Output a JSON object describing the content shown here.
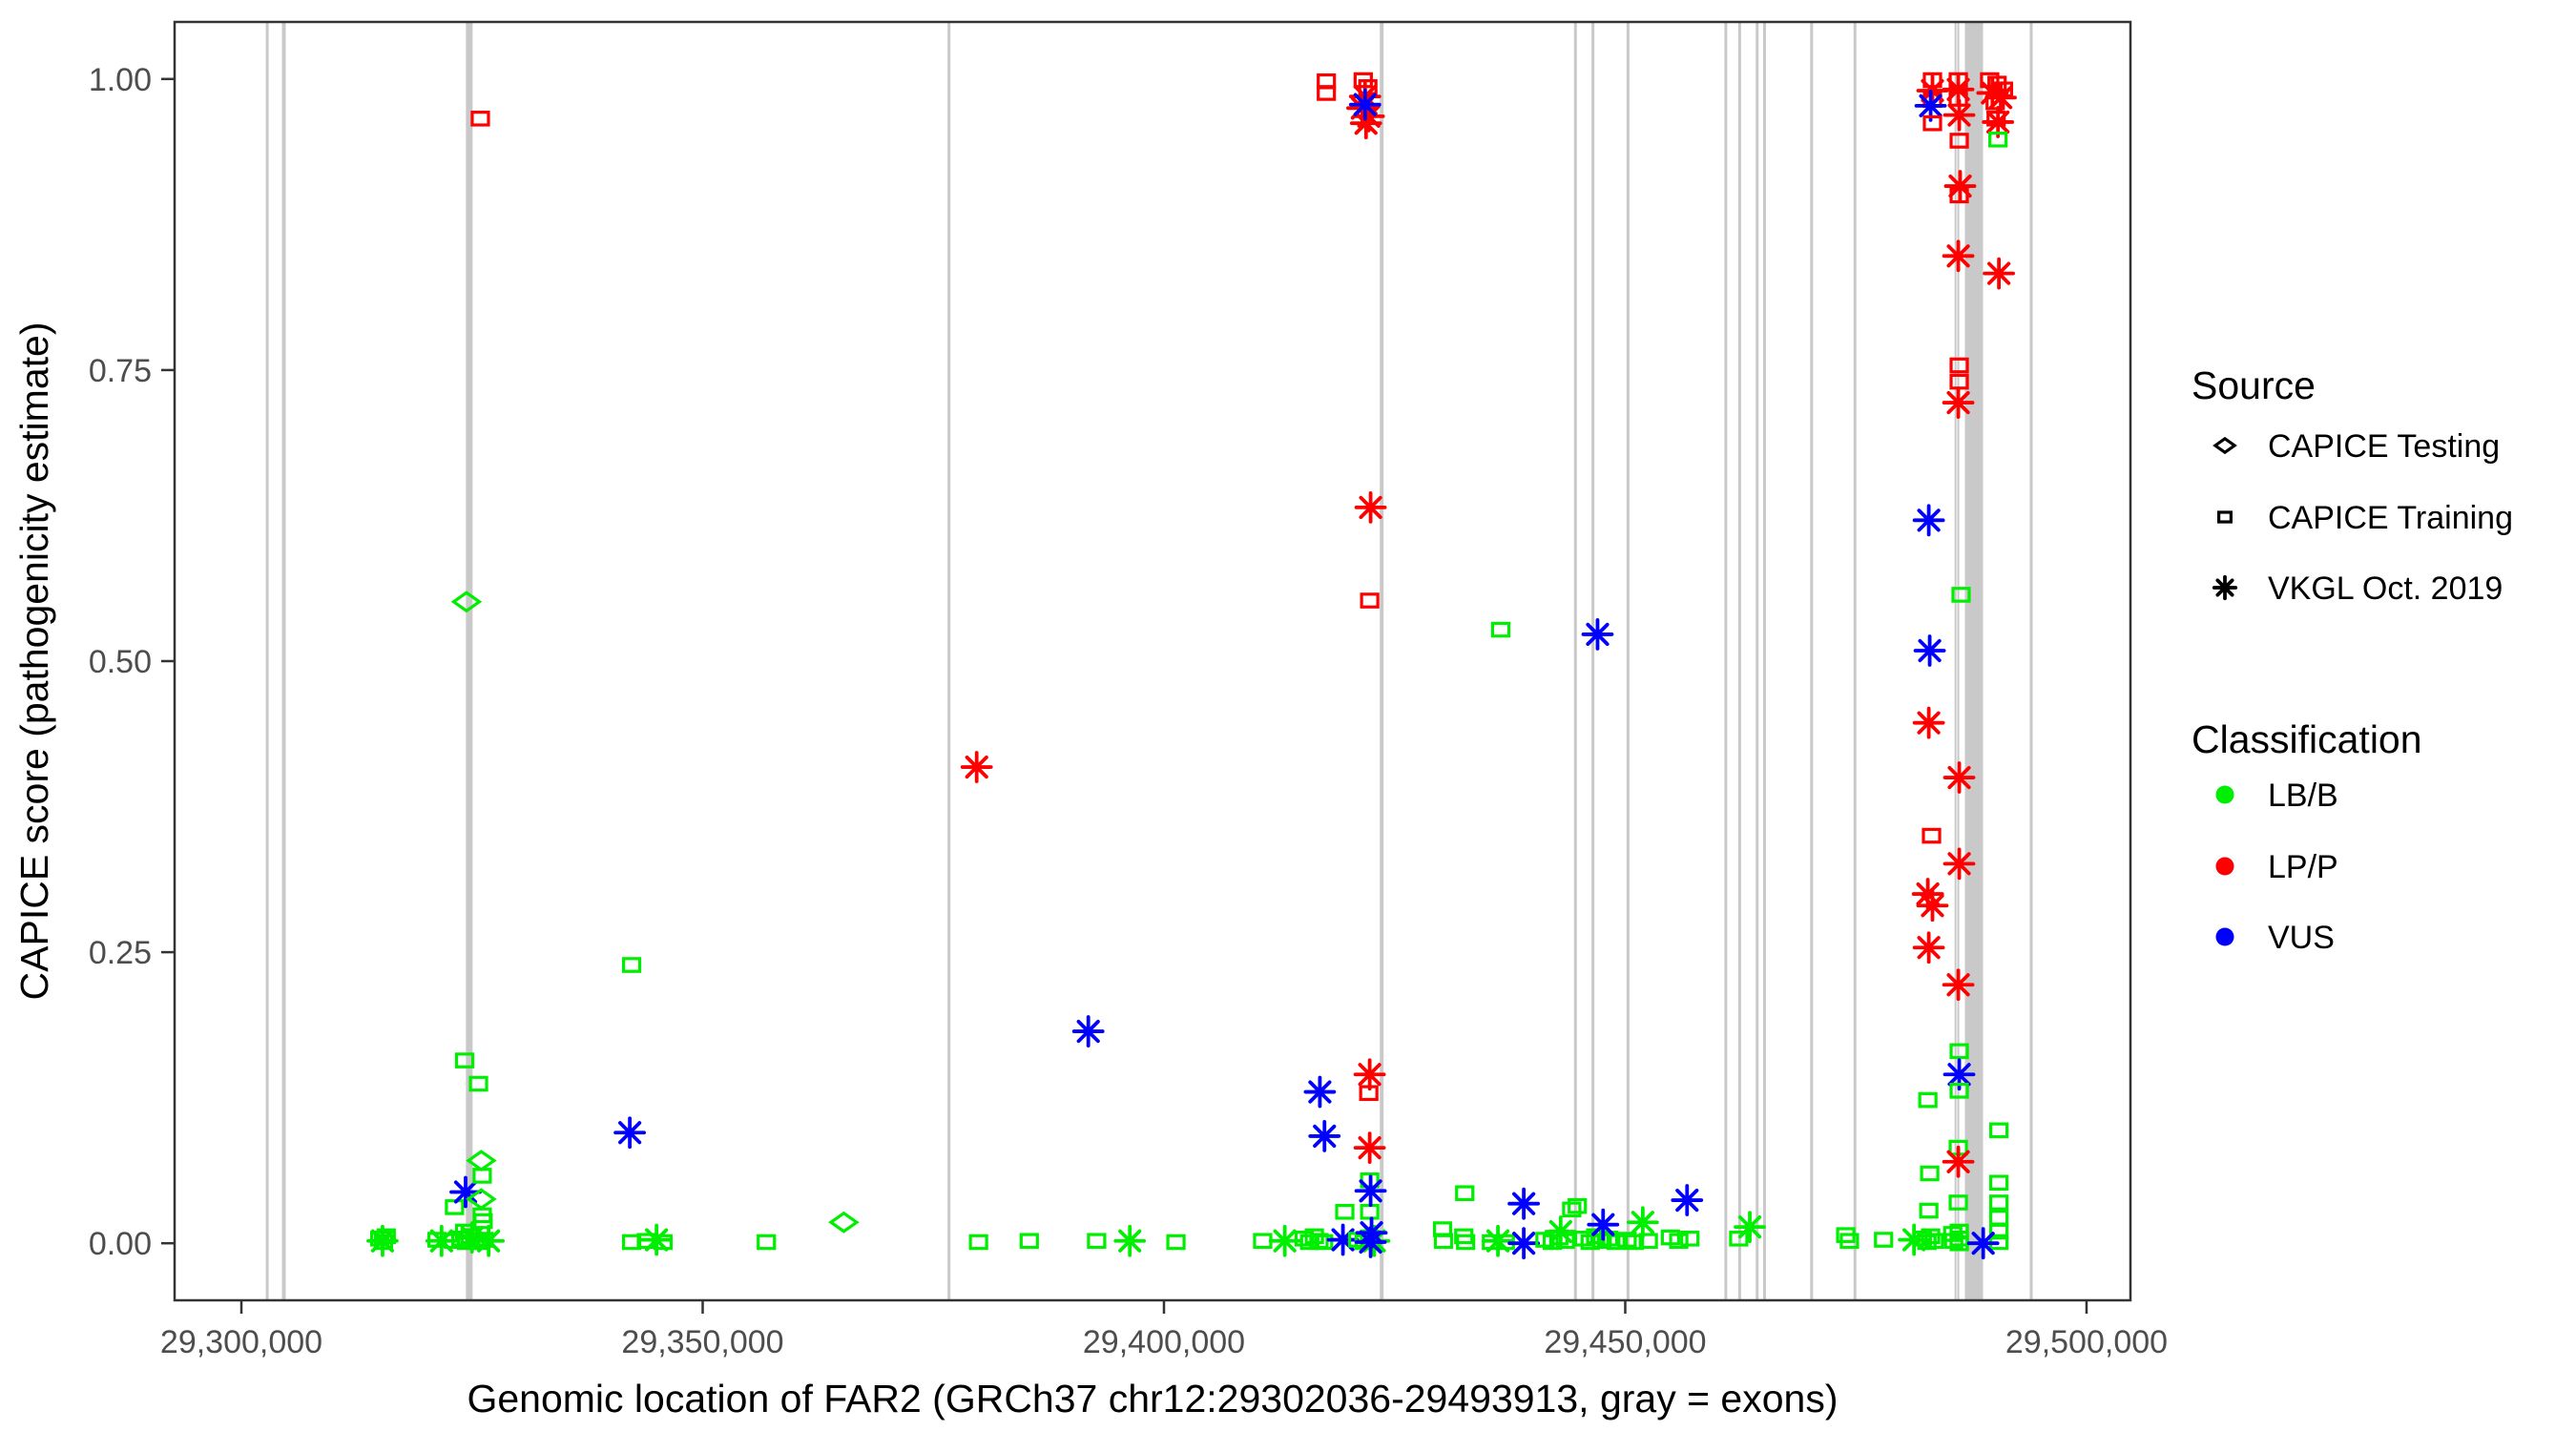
{
  "chart_data": {
    "type": "scatter",
    "title": "",
    "xlabel": "Genomic location of FAR2 (GRCh37 chr12:29302036-29493913, gray = exons)",
    "ylabel": "CAPICE score (pathogenicity estimate)",
    "x_domain": [
      29292760,
      29504760
    ],
    "y_domain": [
      -0.049,
      1.049
    ],
    "grid": "off",
    "x_ticks": [
      {
        "value": 29300000,
        "label": "29,300,000"
      },
      {
        "value": 29350000,
        "label": "29,350,000"
      },
      {
        "value": 29400000,
        "label": "29,400,000"
      },
      {
        "value": 29450000,
        "label": "29,450,000"
      },
      {
        "value": 29500000,
        "label": "29,500,000"
      }
    ],
    "y_ticks": [
      {
        "value": 0.0,
        "label": "0.00"
      },
      {
        "value": 0.25,
        "label": "0.25"
      },
      {
        "value": 0.5,
        "label": "0.50"
      },
      {
        "value": 0.75,
        "label": "0.75"
      },
      {
        "value": 1.0,
        "label": "1.00"
      }
    ],
    "shape_codes": {
      "d": "CAPICE Testing (open diamond)",
      "q": "CAPICE Training (open square)",
      "a": "VKGL Oct. 2019 (asterisk)"
    },
    "color_codes": {
      "G": "LB/B",
      "R": "LP/P",
      "B": "VUS"
    },
    "colors": {
      "G": "#00ee00",
      "R": "#ff0000",
      "B": "#0000ff",
      "exon": "#c9c9c9"
    },
    "exons": [
      {
        "g": 29302800,
        "w": 3
      },
      {
        "g": 29304600,
        "w": 4
      },
      {
        "g": 29324700,
        "w": 7
      },
      {
        "g": 29376700,
        "w": 3
      },
      {
        "g": 29423600,
        "w": 4
      },
      {
        "g": 29444600,
        "w": 3
      },
      {
        "g": 29446500,
        "w": 3
      },
      {
        "g": 29450300,
        "w": 3
      },
      {
        "g": 29460900,
        "w": 3
      },
      {
        "g": 29462400,
        "w": 3
      },
      {
        "g": 29464300,
        "w": 3
      },
      {
        "g": 29465100,
        "w": 3
      },
      {
        "g": 29470200,
        "w": 3
      },
      {
        "g": 29474900,
        "w": 3
      },
      {
        "g": 29485800,
        "w": 2
      },
      {
        "g": 29486100,
        "w": 2
      },
      {
        "g": 29487800,
        "w": 19
      },
      {
        "g": 29494000,
        "w": 3
      }
    ],
    "points": [
      [
        29315000,
        0.004,
        "q",
        "G"
      ],
      [
        29315400,
        0.001,
        "q",
        "G"
      ],
      [
        29315700,
        0.006,
        "q",
        "G"
      ],
      [
        29315300,
        0.002,
        "a",
        "G"
      ],
      [
        29321200,
        0.003,
        "q",
        "G"
      ],
      [
        29321700,
        0.002,
        "a",
        "G"
      ],
      [
        29323000,
        0.002,
        "q",
        "G"
      ],
      [
        29323800,
        0.004,
        "q",
        "G"
      ],
      [
        29324400,
        0.001,
        "q",
        "G"
      ],
      [
        29324800,
        0.006,
        "q",
        "G"
      ],
      [
        29325300,
        0.002,
        "q",
        "G"
      ],
      [
        29325800,
        0.001,
        "q",
        "G"
      ],
      [
        29326300,
        0.003,
        "q",
        "G"
      ],
      [
        29325000,
        0.005,
        "a",
        "G"
      ],
      [
        29326800,
        0.002,
        "a",
        "G"
      ],
      [
        29324200,
        0.01,
        "q",
        "G"
      ],
      [
        29323100,
        0.031,
        "q",
        "G"
      ],
      [
        29326100,
        0.024,
        "q",
        "G"
      ],
      [
        29326200,
        0.019,
        "q",
        "G"
      ],
      [
        29324300,
        0.044,
        "a",
        "B"
      ],
      [
        29326000,
        0.071,
        "d",
        "G"
      ],
      [
        29326100,
        0.058,
        "q",
        "G"
      ],
      [
        29326000,
        0.038,
        "d",
        "G"
      ],
      [
        29324200,
        0.157,
        "q",
        "G"
      ],
      [
        29325700,
        0.137,
        "q",
        "G"
      ],
      [
        29324400,
        0.551,
        "d",
        "G"
      ],
      [
        29325900,
        0.966,
        "q",
        "R"
      ],
      [
        29342300,
        0.001,
        "q",
        "G"
      ],
      [
        29343900,
        0.002,
        "q",
        "G"
      ],
      [
        29345700,
        0.001,
        "q",
        "G"
      ],
      [
        29345000,
        0.003,
        "a",
        "G"
      ],
      [
        29342100,
        0.095,
        "a",
        "B"
      ],
      [
        29342300,
        0.239,
        "q",
        "G"
      ],
      [
        29356900,
        0.001,
        "q",
        "G"
      ],
      [
        29365300,
        0.018,
        "d",
        "G"
      ],
      [
        29379700,
        0.409,
        "a",
        "R"
      ],
      [
        29379900,
        0.001,
        "q",
        "G"
      ],
      [
        29385400,
        0.002,
        "q",
        "G"
      ],
      [
        29391800,
        0.182,
        "a",
        "B"
      ],
      [
        29392700,
        0.002,
        "q",
        "G"
      ],
      [
        29396300,
        0.002,
        "a",
        "G"
      ],
      [
        29401300,
        0.001,
        "q",
        "G"
      ],
      [
        29410700,
        0.002,
        "q",
        "G"
      ],
      [
        29413100,
        0.002,
        "a",
        "G"
      ],
      [
        29415200,
        0.004,
        "q",
        "G"
      ],
      [
        29415800,
        0.001,
        "q",
        "G"
      ],
      [
        29416300,
        0.006,
        "q",
        "G"
      ],
      [
        29416800,
        0.002,
        "q",
        "G"
      ],
      [
        29417300,
        0.001,
        "q",
        "G"
      ],
      [
        29416900,
        0.13,
        "a",
        "B"
      ],
      [
        29417400,
        0.092,
        "a",
        "B"
      ],
      [
        29417600,
        0.998,
        "q",
        "R"
      ],
      [
        29417600,
        0.988,
        "q",
        "R"
      ],
      [
        29419400,
        0.003,
        "a",
        "B"
      ],
      [
        29419600,
        0.027,
        "q",
        "G"
      ],
      [
        29421000,
        0.003,
        "q",
        "G"
      ],
      [
        29421700,
        0.001,
        "q",
        "G"
      ],
      [
        29422300,
        0.005,
        "q",
        "G"
      ],
      [
        29422800,
        0.002,
        "a",
        "G"
      ],
      [
        29422400,
        0.001,
        "a",
        "B"
      ],
      [
        29422300,
        0.027,
        "q",
        "G"
      ],
      [
        29422300,
        0.054,
        "q",
        "G"
      ],
      [
        29422400,
        0.045,
        "a",
        "B"
      ],
      [
        29422500,
        0.009,
        "a",
        "B"
      ],
      [
        29422300,
        0.145,
        "a",
        "R"
      ],
      [
        29422200,
        0.129,
        "q",
        "R"
      ],
      [
        29422300,
        0.082,
        "a",
        "R"
      ],
      [
        29422300,
        0.552,
        "q",
        "R"
      ],
      [
        29422400,
        0.632,
        "a",
        "R"
      ],
      [
        29421600,
        0.999,
        "q",
        "R"
      ],
      [
        29422100,
        0.993,
        "q",
        "R"
      ],
      [
        29421800,
        0.985,
        "a",
        "R"
      ],
      [
        29421500,
        0.975,
        "a",
        "R"
      ],
      [
        29422200,
        0.968,
        "a",
        "R"
      ],
      [
        29421900,
        0.962,
        "a",
        "R"
      ],
      [
        29421800,
        0.978,
        "a",
        "B"
      ],
      [
        29430200,
        0.012,
        "q",
        "G"
      ],
      [
        29430300,
        0.002,
        "q",
        "G"
      ],
      [
        29432600,
        0.043,
        "q",
        "G"
      ],
      [
        29432500,
        0.006,
        "q",
        "G"
      ],
      [
        29432700,
        0.001,
        "q",
        "G"
      ],
      [
        29435500,
        0.001,
        "q",
        "G"
      ],
      [
        29436200,
        0.002,
        "a",
        "G"
      ],
      [
        29437000,
        0.001,
        "q",
        "G"
      ],
      [
        29436500,
        0.527,
        "q",
        "G"
      ],
      [
        29439000,
        0.034,
        "a",
        "B"
      ],
      [
        29439000,
        0.0,
        "a",
        "B"
      ],
      [
        29441300,
        0.003,
        "q",
        "G"
      ],
      [
        29442100,
        0.001,
        "q",
        "G"
      ],
      [
        29442800,
        0.005,
        "q",
        "G"
      ],
      [
        29443500,
        0.002,
        "q",
        "G"
      ],
      [
        29443000,
        0.01,
        "a",
        "G"
      ],
      [
        29444200,
        0.029,
        "q",
        "G"
      ],
      [
        29444800,
        0.032,
        "q",
        "G"
      ],
      [
        29445500,
        0.004,
        "q",
        "G"
      ],
      [
        29446200,
        0.001,
        "q",
        "G"
      ],
      [
        29446800,
        0.006,
        "q",
        "G"
      ],
      [
        29447500,
        0.002,
        "q",
        "G"
      ],
      [
        29448200,
        0.004,
        "q",
        "G"
      ],
      [
        29449000,
        0.001,
        "q",
        "G"
      ],
      [
        29447000,
        0.523,
        "a",
        "B"
      ],
      [
        29447600,
        0.016,
        "a",
        "B"
      ],
      [
        29450200,
        0.003,
        "q",
        "G"
      ],
      [
        29451000,
        0.001,
        "q",
        "G"
      ],
      [
        29451900,
        0.018,
        "a",
        "G"
      ],
      [
        29452500,
        0.002,
        "q",
        "G"
      ],
      [
        29454900,
        0.005,
        "q",
        "G"
      ],
      [
        29455800,
        0.002,
        "q",
        "G"
      ],
      [
        29457000,
        0.004,
        "q",
        "G"
      ],
      [
        29456700,
        0.037,
        "a",
        "B"
      ],
      [
        29462300,
        0.004,
        "q",
        "G"
      ],
      [
        29463500,
        0.014,
        "a",
        "G"
      ],
      [
        29473900,
        0.007,
        "q",
        "G"
      ],
      [
        29474300,
        0.002,
        "q",
        "G"
      ],
      [
        29478000,
        0.003,
        "q",
        "G"
      ],
      [
        29481300,
        0.003,
        "a",
        "G"
      ],
      [
        29482200,
        0.004,
        "q",
        "G"
      ],
      [
        29482700,
        0.001,
        "q",
        "G"
      ],
      [
        29483100,
        0.006,
        "q",
        "G"
      ],
      [
        29483500,
        0.002,
        "q",
        "G"
      ],
      [
        29485500,
        0.008,
        "q",
        "G"
      ],
      [
        29485600,
        0.002,
        "q",
        "G"
      ],
      [
        29483300,
        0.999,
        "q",
        "R"
      ],
      [
        29483300,
        0.99,
        "a",
        "R"
      ],
      [
        29483300,
        0.982,
        "q",
        "R"
      ],
      [
        29483100,
        0.977,
        "a",
        "B"
      ],
      [
        29483300,
        0.962,
        "q",
        "R"
      ],
      [
        29482900,
        0.621,
        "a",
        "B"
      ],
      [
        29483000,
        0.509,
        "a",
        "B"
      ],
      [
        29482900,
        0.447,
        "a",
        "R"
      ],
      [
        29483200,
        0.35,
        "q",
        "R"
      ],
      [
        29482800,
        0.3,
        "a",
        "R"
      ],
      [
        29483300,
        0.29,
        "a",
        "R"
      ],
      [
        29482900,
        0.254,
        "a",
        "R"
      ],
      [
        29482800,
        0.123,
        "q",
        "G"
      ],
      [
        29483000,
        0.06,
        "q",
        "G"
      ],
      [
        29482900,
        0.028,
        "q",
        "G"
      ],
      [
        29486100,
        0.999,
        "q",
        "R"
      ],
      [
        29486100,
        0.991,
        "a",
        "R"
      ],
      [
        29486100,
        0.983,
        "q",
        "R"
      ],
      [
        29486200,
        0.969,
        "a",
        "R"
      ],
      [
        29486200,
        0.947,
        "q",
        "R"
      ],
      [
        29486300,
        0.908,
        "a",
        "R"
      ],
      [
        29486200,
        0.9,
        "q",
        "R"
      ],
      [
        29486100,
        0.848,
        "a",
        "R"
      ],
      [
        29486200,
        0.754,
        "q",
        "R"
      ],
      [
        29486200,
        0.74,
        "q",
        "R"
      ],
      [
        29486100,
        0.722,
        "a",
        "R"
      ],
      [
        29486400,
        0.557,
        "q",
        "G"
      ],
      [
        29486200,
        0.4,
        "a",
        "R"
      ],
      [
        29486200,
        0.326,
        "a",
        "R"
      ],
      [
        29486100,
        0.222,
        "a",
        "R"
      ],
      [
        29486200,
        0.165,
        "q",
        "G"
      ],
      [
        29486200,
        0.145,
        "a",
        "B"
      ],
      [
        29486200,
        0.131,
        "q",
        "G"
      ],
      [
        29486100,
        0.082,
        "q",
        "G"
      ],
      [
        29486100,
        0.07,
        "a",
        "R"
      ],
      [
        29486100,
        0.035,
        "q",
        "G"
      ],
      [
        29486200,
        0.01,
        "q",
        "G"
      ],
      [
        29486200,
        0.004,
        "q",
        "G"
      ],
      [
        29486200,
        0.0,
        "q",
        "G"
      ],
      [
        29489500,
        0.999,
        "q",
        "R"
      ],
      [
        29490300,
        0.996,
        "q",
        "R"
      ],
      [
        29491000,
        0.991,
        "q",
        "R"
      ],
      [
        29489800,
        0.988,
        "a",
        "R"
      ],
      [
        29490700,
        0.984,
        "a",
        "R"
      ],
      [
        29490100,
        0.98,
        "q",
        "R"
      ],
      [
        29490200,
        0.966,
        "q",
        "R"
      ],
      [
        29490400,
        0.963,
        "a",
        "R"
      ],
      [
        29490400,
        0.948,
        "q",
        "G"
      ],
      [
        29490500,
        0.833,
        "a",
        "R"
      ],
      [
        29490500,
        0.097,
        "q",
        "G"
      ],
      [
        29490500,
        0.052,
        "q",
        "G"
      ],
      [
        29490500,
        0.035,
        "q",
        "G"
      ],
      [
        29490500,
        0.022,
        "q",
        "G"
      ],
      [
        29490500,
        0.01,
        "q",
        "G"
      ],
      [
        29490500,
        0.001,
        "q",
        "G"
      ],
      [
        29488800,
        0.0,
        "a",
        "B"
      ]
    ]
  },
  "legend": {
    "source": {
      "title": "Source",
      "items": [
        {
          "icon": "diamond-icon",
          "shape": "d",
          "label": "CAPICE Testing"
        },
        {
          "icon": "square-icon",
          "shape": "q",
          "label": "CAPICE Training"
        },
        {
          "icon": "asterisk-icon",
          "shape": "a",
          "label": "VKGL Oct. 2019"
        }
      ]
    },
    "classification": {
      "title": "Classification",
      "items": [
        {
          "icon": "dot-icon",
          "color": "G",
          "label": "LB/B"
        },
        {
          "icon": "dot-icon",
          "color": "R",
          "label": "LP/P"
        },
        {
          "icon": "dot-icon",
          "color": "B",
          "label": "VUS"
        }
      ]
    }
  }
}
